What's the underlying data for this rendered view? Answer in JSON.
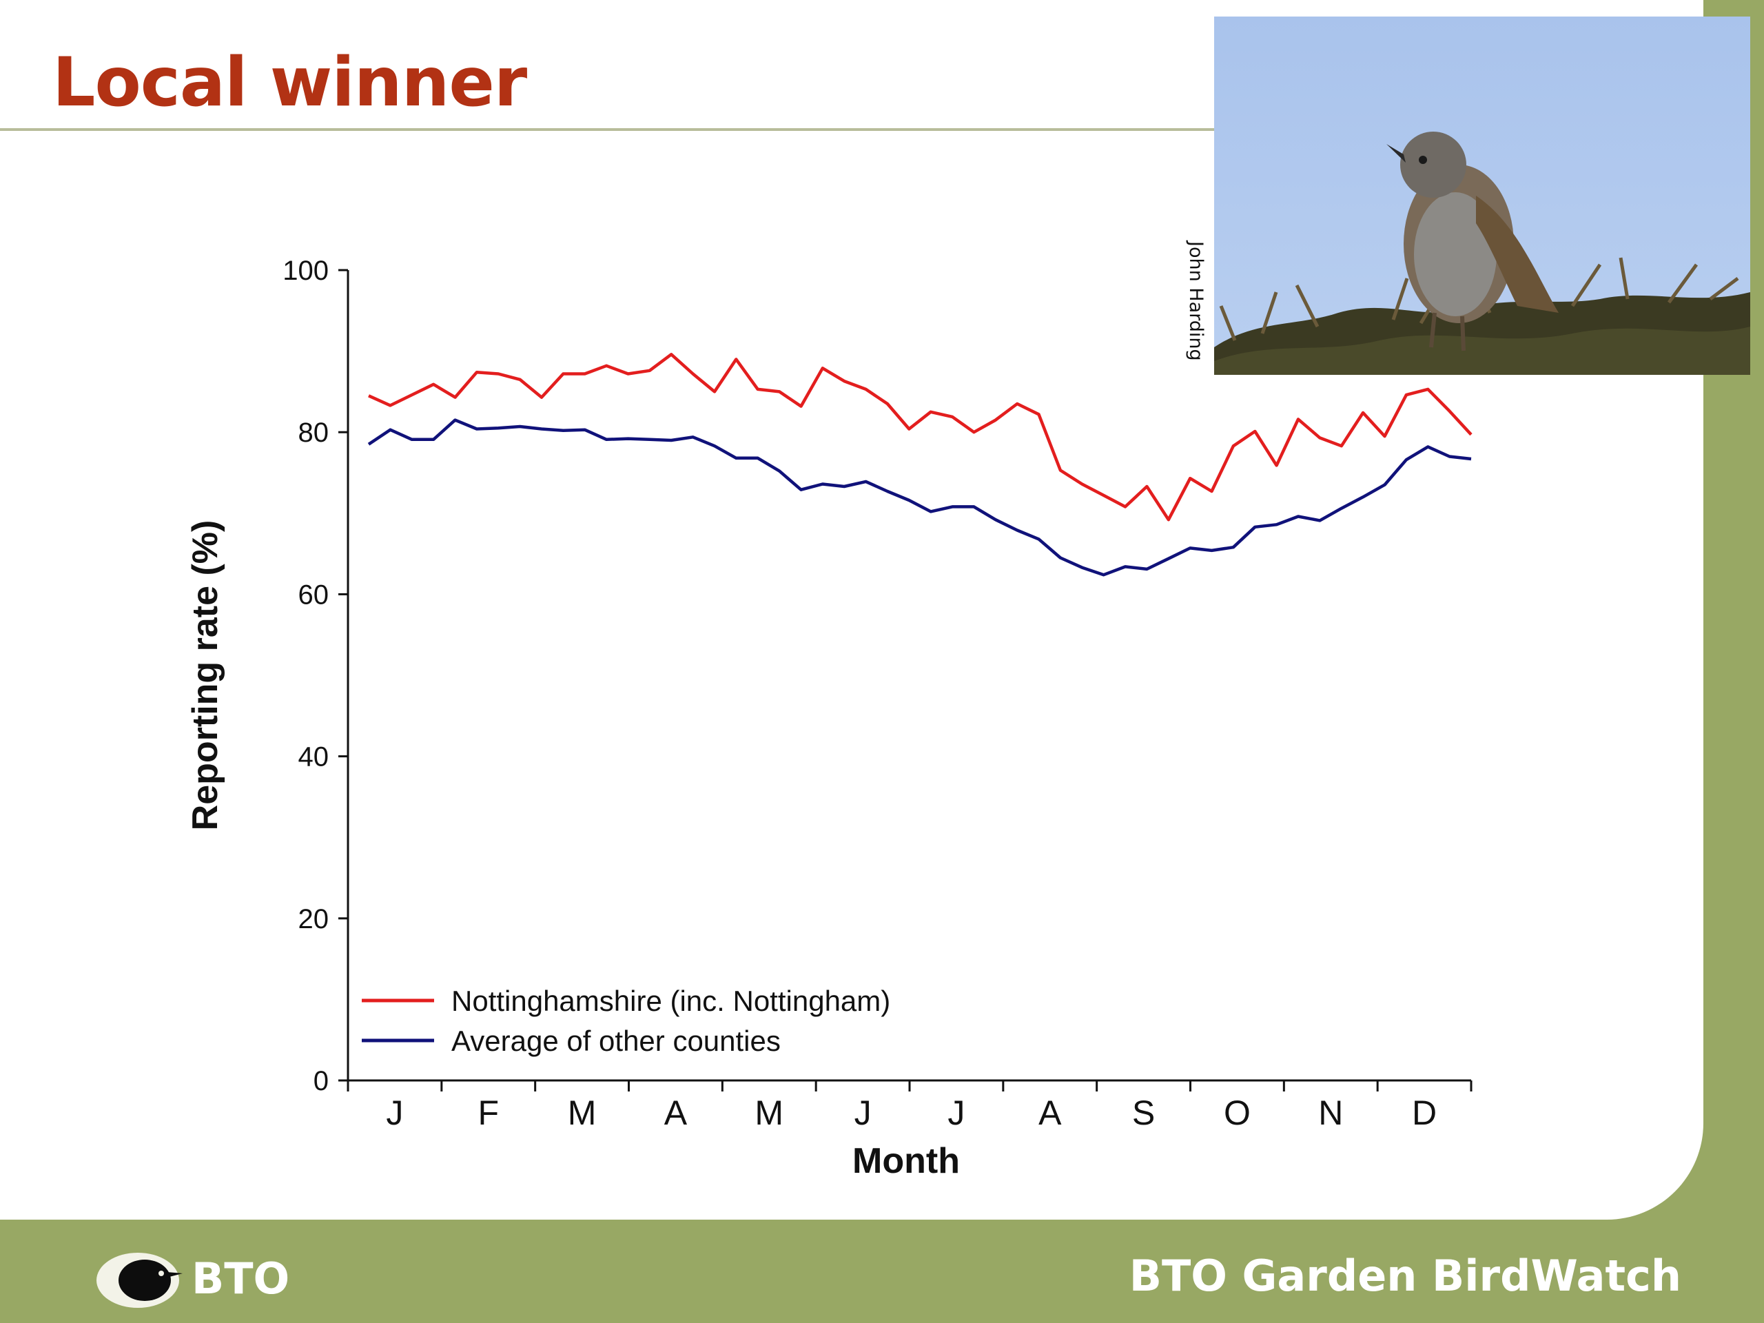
{
  "slide": {
    "title": "Local winner",
    "photo_credit": "John Harding",
    "footer_logo": "BTO",
    "footer_brand": "BTO Garden BirdWatch"
  },
  "icons": {
    "photo": "dunnock-photo",
    "logo": "bto-logo"
  },
  "colors": {
    "title": "#b23214",
    "footer_band": "#98a864",
    "series_notts": "#e31e1e",
    "series_other": "#10127a"
  },
  "chart_data": {
    "type": "line",
    "title": "",
    "xlabel": "Month",
    "ylabel": "Reporting rate (%)",
    "ylim": [
      0,
      100
    ],
    "yticks": [
      0,
      20,
      40,
      60,
      80,
      100
    ],
    "categories": [
      "J",
      "F",
      "M",
      "A",
      "M",
      "J",
      "J",
      "A",
      "S",
      "O",
      "N",
      "D"
    ],
    "legend_position": "bottom-left",
    "grid": false,
    "x": [
      1,
      2,
      3,
      4,
      5,
      6,
      7,
      8,
      9,
      10,
      11,
      12,
      13,
      14,
      15,
      16,
      17,
      18,
      19,
      20,
      21,
      22,
      23,
      24,
      25,
      26,
      27,
      28,
      29,
      30,
      31,
      32,
      33,
      34,
      35,
      36,
      37,
      38,
      39,
      40,
      41,
      42,
      43,
      44,
      45,
      46,
      47,
      48,
      49,
      50,
      51,
      52
    ],
    "series": [
      {
        "name": "Nottinghamshire (inc. Nottingham)",
        "color": "#e31e1e",
        "values": [
          84.5,
          83.3,
          84.6,
          85.9,
          84.3,
          87.4,
          87.2,
          86.5,
          84.3,
          87.2,
          87.2,
          88.2,
          87.2,
          87.6,
          89.6,
          87.2,
          85.0,
          89.0,
          85.3,
          85.0,
          83.2,
          87.9,
          86.3,
          85.3,
          83.5,
          80.4,
          82.5,
          81.9,
          80.0,
          81.5,
          83.5,
          82.2,
          75.3,
          73.6,
          72.2,
          70.8,
          73.3,
          69.2,
          74.3,
          72.7,
          78.3,
          80.1,
          75.9,
          81.6,
          79.3,
          78.3,
          82.4,
          79.5,
          84.6,
          85.3,
          82.6,
          79.7
        ]
      },
      {
        "name": "Average of other counties",
        "color": "#10127a",
        "values": [
          78.5,
          80.3,
          79.1,
          79.1,
          81.5,
          80.4,
          80.5,
          80.7,
          80.4,
          80.2,
          80.3,
          79.1,
          79.2,
          79.1,
          79.0,
          79.4,
          78.3,
          76.8,
          76.8,
          75.2,
          72.9,
          73.6,
          73.3,
          73.9,
          72.7,
          71.6,
          70.2,
          70.8,
          70.8,
          69.2,
          67.9,
          66.8,
          64.5,
          63.3,
          62.4,
          63.4,
          63.1,
          64.4,
          65.7,
          65.4,
          65.8,
          68.3,
          68.6,
          69.6,
          69.1,
          70.6,
          72.0,
          73.5,
          76.6,
          78.2,
          77.0,
          76.7
        ]
      }
    ]
  }
}
